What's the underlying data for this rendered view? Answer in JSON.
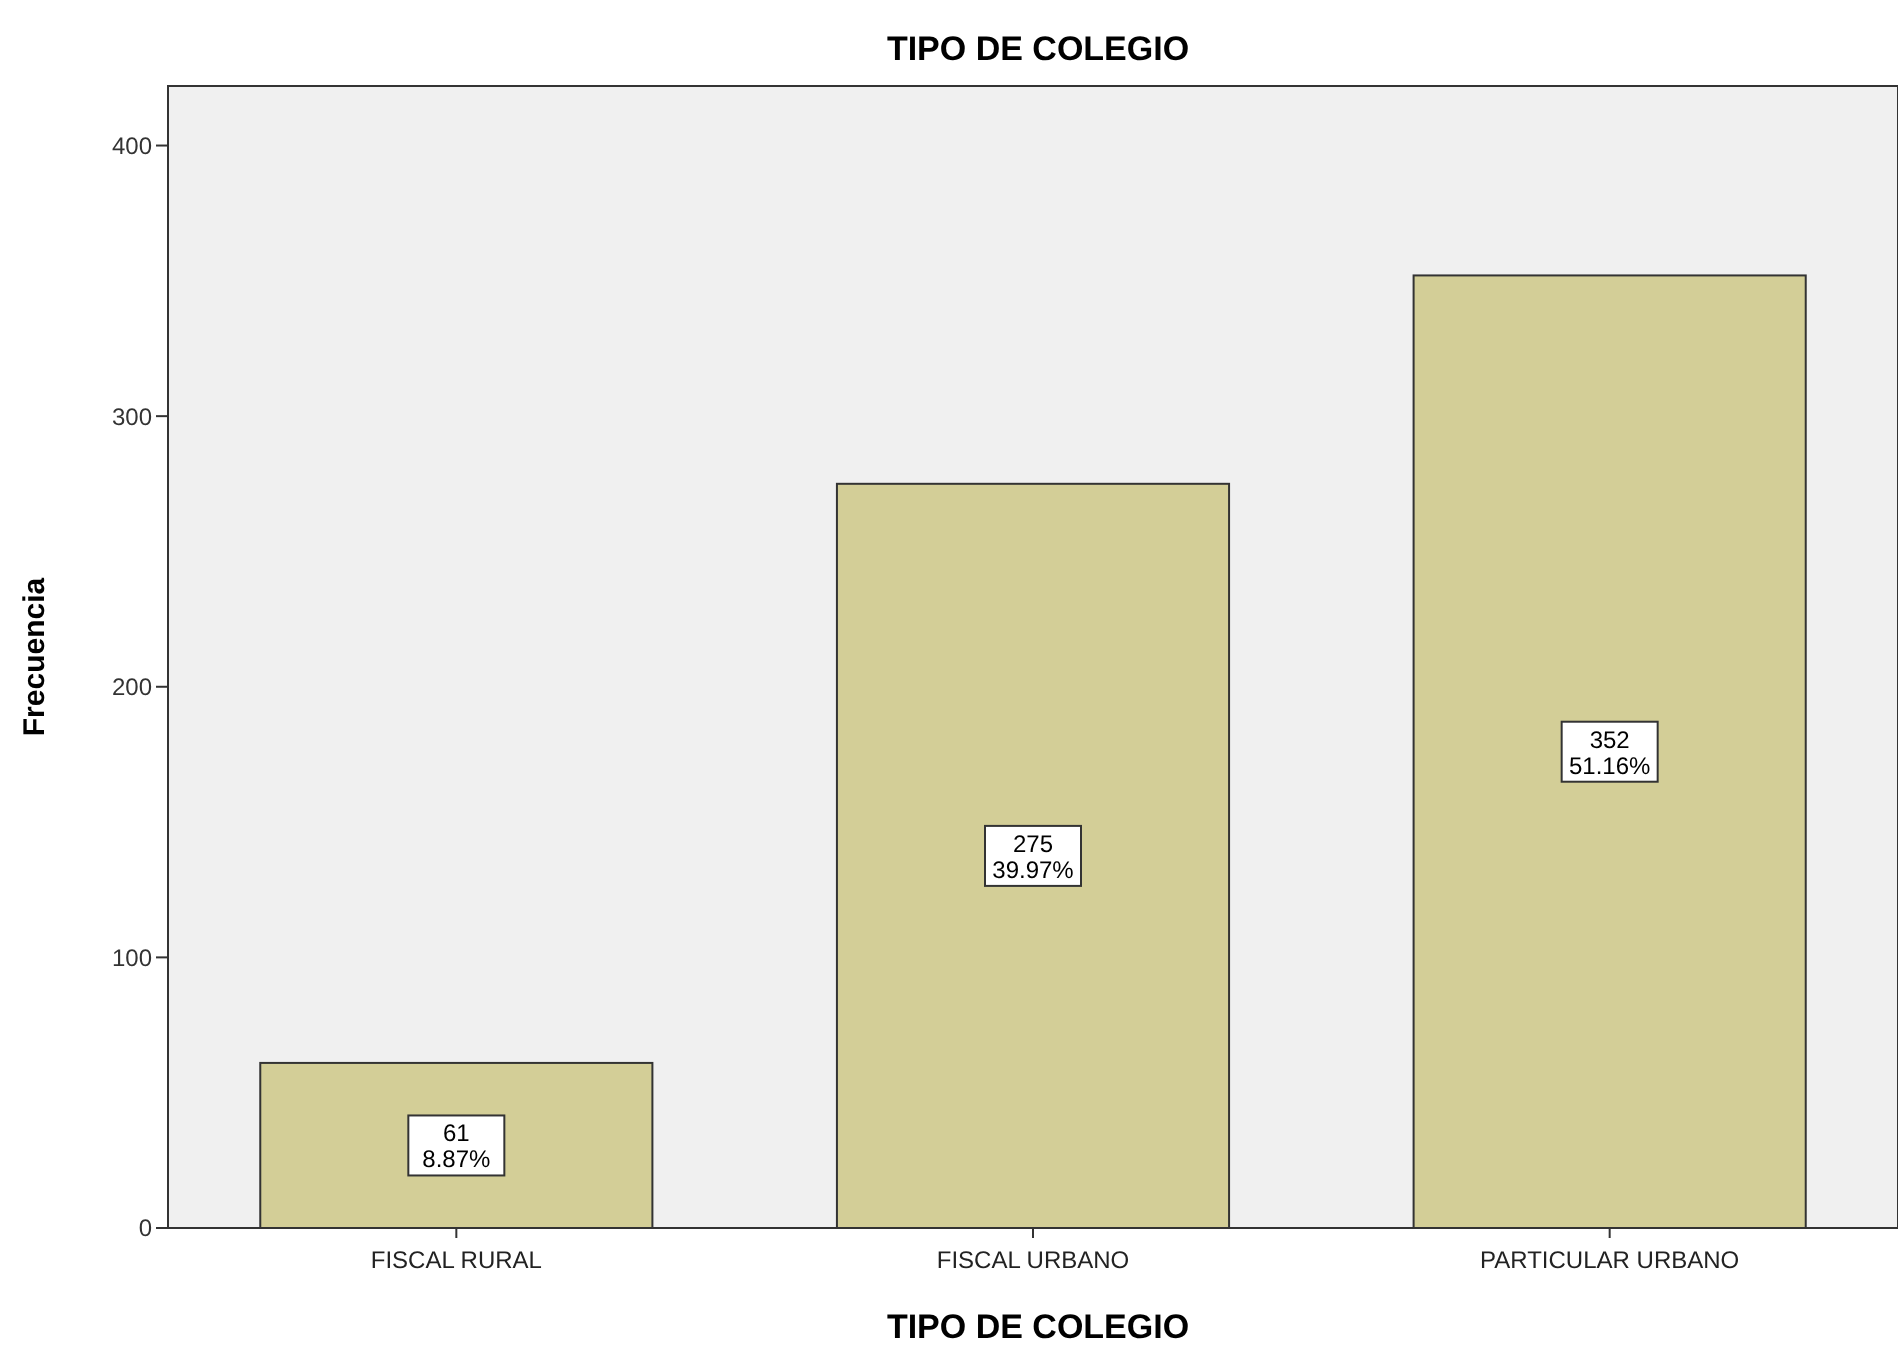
{
  "chart_data": {
    "type": "bar",
    "title": "TIPO DE COLEGIO",
    "xlabel": "TIPO DE COLEGIO",
    "ylabel": "Frecuencia",
    "categories": [
      "FISCAL RURAL",
      "FISCAL URBANO",
      "PARTICULAR URBANO"
    ],
    "values": [
      61,
      275,
      352
    ],
    "value_labels": [
      "61\n8.87%",
      "275\n39.97%",
      "352\n51.16%"
    ],
    "color": "#d3ce97",
    "ylim": [
      0,
      422
    ],
    "yticks": [
      0,
      100,
      200,
      300,
      400
    ],
    "grid": false
  }
}
